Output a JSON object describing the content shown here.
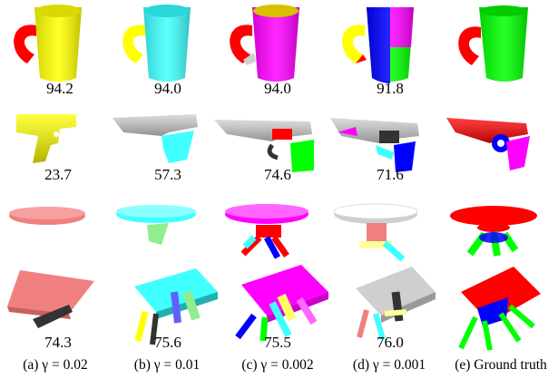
{
  "colors": {
    "yellow": "#ffff00",
    "cyan": "#40ffff",
    "magenta": "#ff00ff",
    "red": "#ff0000",
    "green": "#00ff00",
    "blue": "#0000ff",
    "gray": "#cfcfcf",
    "salmon": "#f08080",
    "dark": "#333333"
  },
  "rows": [
    {
      "object": "mug",
      "scores": [
        "94.2",
        "94.0",
        "94.0",
        "91.8"
      ]
    },
    {
      "object": "gun",
      "scores": [
        "23.7",
        "57.3",
        "74.6",
        "71.6"
      ]
    },
    {
      "object": "table",
      "scores": []
    },
    {
      "object": "chair",
      "scores": [
        "74.3",
        "75.6",
        "75.5",
        "76.0"
      ]
    }
  ],
  "captions": [
    "(a) γ = 0.02",
    "(b) γ = 0.01",
    "(c) γ = 0.002",
    "(d) γ = 0.001",
    "(e) Ground truth"
  ]
}
